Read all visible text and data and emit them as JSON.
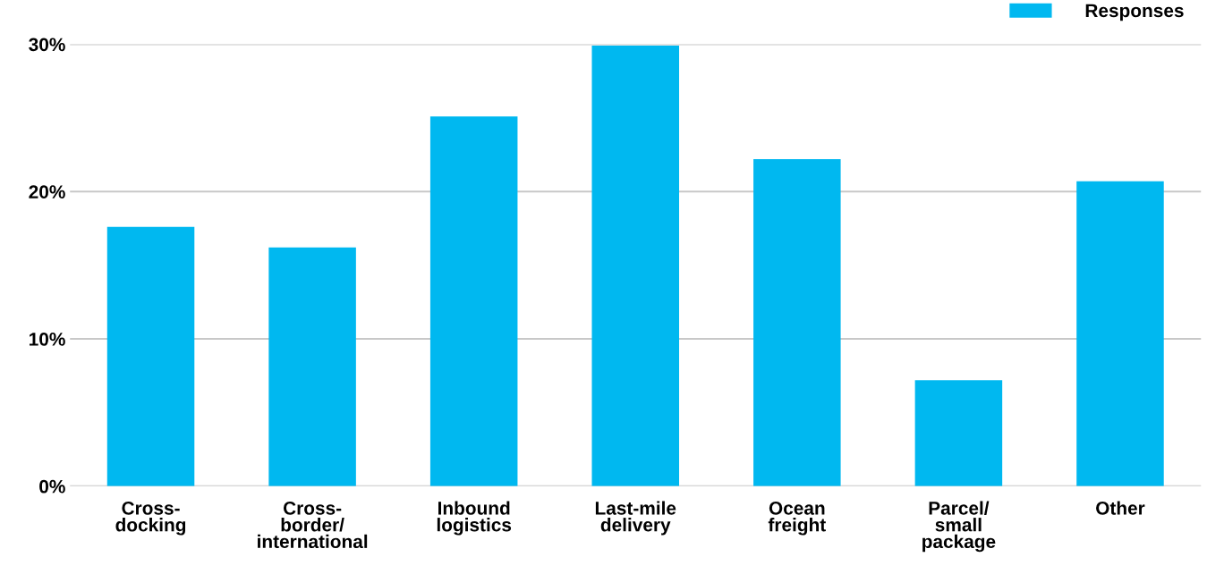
{
  "chart_data": {
    "type": "bar",
    "categories": [
      "Cross-\ndocking",
      "Cross-\nborder/\ninternational",
      "Inbound\nlogistics",
      "Last-mile\ndelivery",
      "Ocean\nfreight",
      "Parcel/\nsmall\npackage",
      "Other"
    ],
    "series": [
      {
        "name": "Responses",
        "color": "#00b8f0",
        "values": [
          17.6,
          16.2,
          25.1,
          29.9,
          22.2,
          7.2,
          20.7
        ]
      }
    ],
    "ylim": [
      0,
      30
    ],
    "yticks": [
      {
        "value": 0,
        "label": "0%"
      },
      {
        "value": 10,
        "label": "10%"
      },
      {
        "value": 20,
        "label": "20%"
      },
      {
        "value": 30,
        "label": "30%"
      }
    ],
    "grid": "y",
    "legend": "top right"
  }
}
